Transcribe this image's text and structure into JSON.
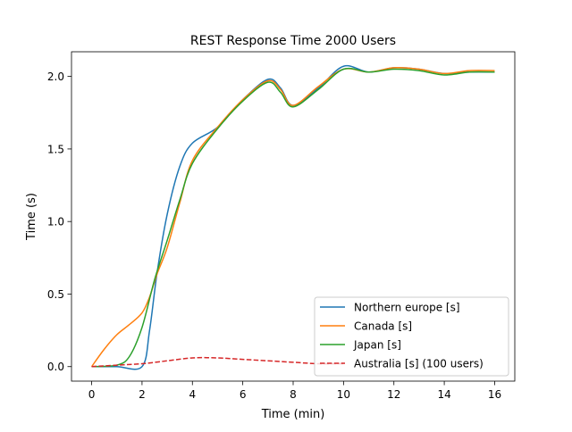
{
  "chart_data": {
    "type": "line",
    "title": "REST Response Time 2000 Users",
    "xlabel": "Time (min)",
    "ylabel": "Time (s)",
    "xlim": [
      -0.8,
      16.8
    ],
    "ylim": [
      -0.1,
      2.17
    ],
    "xticks": [
      0,
      2,
      4,
      6,
      8,
      10,
      12,
      14,
      16
    ],
    "yticks": [
      0.0,
      0.5,
      1.0,
      1.5,
      2.0
    ],
    "xtick_labels": [
      "0",
      "2",
      "4",
      "6",
      "8",
      "10",
      "12",
      "14",
      "16"
    ],
    "ytick_labels": [
      "0.0",
      "0.5",
      "1.0",
      "1.5",
      "2.0"
    ],
    "grid": false,
    "legend_position": "lower-right",
    "series": [
      {
        "name": "Northern europe [s]",
        "color": "#1f77b4",
        "style": "solid",
        "x": [
          0,
          1,
          2,
          2.3,
          2.6,
          3,
          3.5,
          4,
          5,
          6,
          7,
          7.5,
          8,
          9,
          10,
          11,
          12,
          13,
          14,
          15,
          16
        ],
        "y": [
          0.0,
          0.0,
          0.0,
          0.25,
          0.65,
          1.05,
          1.38,
          1.54,
          1.65,
          1.84,
          1.98,
          1.92,
          1.8,
          1.92,
          2.07,
          2.03,
          2.06,
          2.05,
          2.02,
          2.03,
          2.03
        ]
      },
      {
        "name": "Canada [s]",
        "color": "#ff7f0e",
        "style": "solid",
        "x": [
          0,
          0.5,
          1,
          1.5,
          2,
          2.3,
          2.6,
          3,
          3.5,
          4,
          5,
          6,
          7,
          7.5,
          8,
          9,
          10,
          11,
          12,
          13,
          14,
          15,
          16
        ],
        "y": [
          0.0,
          0.12,
          0.22,
          0.29,
          0.37,
          0.48,
          0.64,
          0.82,
          1.13,
          1.42,
          1.65,
          1.84,
          1.97,
          1.91,
          1.8,
          1.93,
          2.05,
          2.03,
          2.06,
          2.05,
          2.02,
          2.04,
          2.04
        ]
      },
      {
        "name": "Japan [s]",
        "color": "#2ca02c",
        "style": "solid",
        "x": [
          0,
          1,
          1.5,
          2,
          2.5,
          3,
          3.5,
          4,
          5,
          6,
          7,
          7.5,
          8,
          9,
          10,
          11,
          12,
          13,
          14,
          15,
          16
        ],
        "y": [
          0.0,
          0.01,
          0.07,
          0.27,
          0.6,
          0.87,
          1.15,
          1.4,
          1.64,
          1.83,
          1.96,
          1.89,
          1.79,
          1.91,
          2.05,
          2.03,
          2.05,
          2.04,
          2.01,
          2.03,
          2.03
        ]
      },
      {
        "name": "Australia [s] (100 users)",
        "color": "#d62728",
        "style": "dashed",
        "x": [
          0,
          1,
          2,
          3,
          4,
          5,
          6,
          7,
          8,
          9,
          10
        ],
        "y": [
          0.0,
          0.01,
          0.02,
          0.04,
          0.06,
          0.06,
          0.05,
          0.04,
          0.03,
          0.02,
          0.02
        ]
      }
    ]
  }
}
